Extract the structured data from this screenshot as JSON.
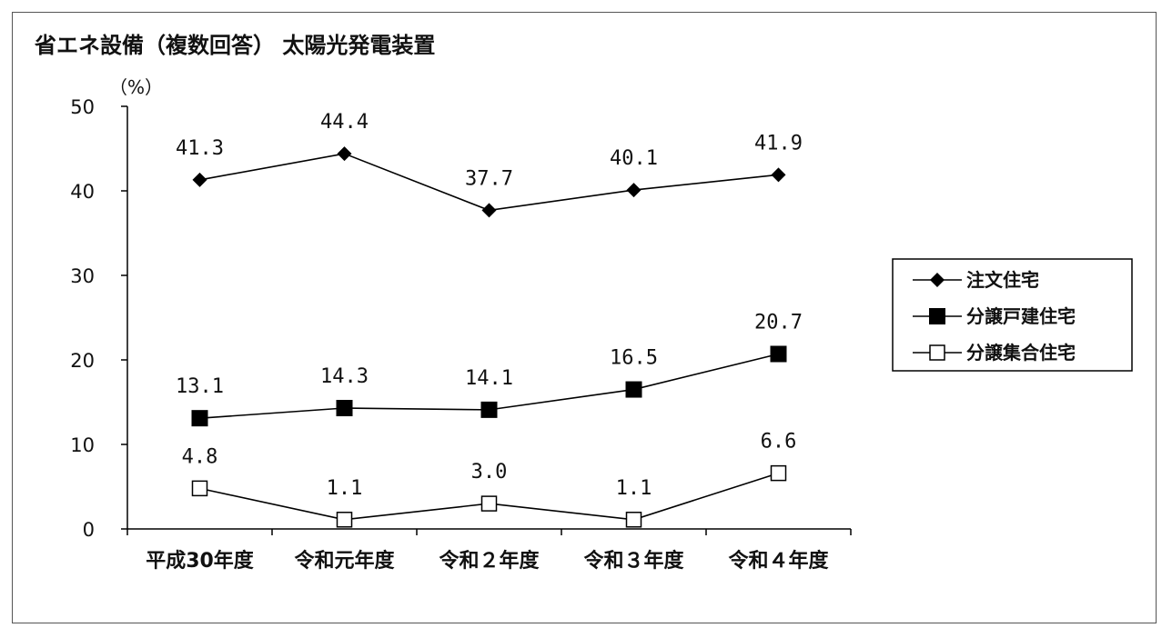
{
  "chart_data": {
    "type": "line",
    "title": "省エネ設備（複数回答） 太陽光発電装置",
    "unit_label": "（%）",
    "ylim": [
      0,
      50
    ],
    "yticks": [
      0,
      10,
      20,
      30,
      40,
      50
    ],
    "categories": [
      "平成30年度",
      "令和元年度",
      "令和２年度",
      "令和３年度",
      "令和４年度"
    ],
    "legend_position": "right",
    "grid": false,
    "series": [
      {
        "name": "注文住宅",
        "marker": "diamond",
        "color": "#000000",
        "values": [
          41.3,
          44.4,
          37.7,
          40.1,
          41.9
        ],
        "labels": [
          "41.3",
          "44.4",
          "37.7",
          "40.1",
          "41.9"
        ]
      },
      {
        "name": "分譲戸建住宅",
        "marker": "square-filled",
        "color": "#000000",
        "values": [
          13.1,
          14.3,
          14.1,
          16.5,
          20.7
        ],
        "labels": [
          "13.1",
          "14.3",
          "14.1",
          "16.5",
          "20.7"
        ]
      },
      {
        "name": "分譲集合住宅",
        "marker": "square-open",
        "color": "#000000",
        "values": [
          4.8,
          1.1,
          3.0,
          1.1,
          6.6
        ],
        "labels": [
          "4.8",
          "1.1",
          "3.0",
          "1.1",
          "6.6"
        ]
      }
    ]
  }
}
